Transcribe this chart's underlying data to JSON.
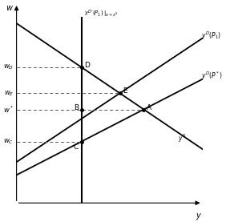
{
  "bg_color": "#ffffff",
  "xlabel": "y",
  "ylabel": "w",
  "xlim": [
    0,
    10
  ],
  "ylim": [
    0,
    10
  ],
  "supply_intercept": 9.0,
  "supply_slope": -0.63,
  "label_supply": "$y^S$",
  "demand1_intercept": 2.05,
  "demand1_slope": 0.62,
  "label_demand1": "$y^{D}(P_1)$",
  "demand2_intercept": 1.4,
  "demand2_slope": 0.48,
  "label_demand2": "$y^{D}(P^*)$",
  "constraint_x": 3.5,
  "label_constraint": "$y^{D'}(P_1)\\,|_{x<x^S}$",
  "label_wD": "$w_D$",
  "label_wE": "$w_E$",
  "label_wstar": "$w^*$",
  "label_wC": "$w_C$",
  "pt_D": "D",
  "pt_E": "E",
  "pt_B": "B",
  "pt_A": "A",
  "pt_C": "C",
  "line_lw": 1.3,
  "constraint_lw": 1.5,
  "dashed_lw": 0.7,
  "dashed_color": "#555555",
  "fs_axis": 7,
  "fs_curve": 5.5,
  "fs_constraint": 5.0,
  "fs_tick": 6.0,
  "fs_point": 6.5
}
